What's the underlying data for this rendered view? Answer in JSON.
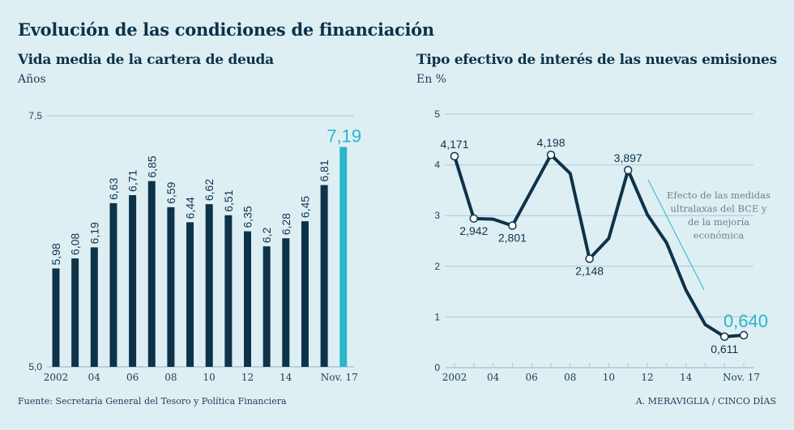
{
  "title": "Evolución de las condiciones de financiación",
  "footer": {
    "source": "Fuente: Secretaría General del Tesoro y Política Financiera",
    "credit": "A. MERAVIGLIA / CINCO DÍAS"
  },
  "colors": {
    "background": "#deeff4",
    "primary": "#0d3349",
    "highlight": "#2bb5c8",
    "gridline": "#a9c9d4",
    "annotation_line": "#2bb5c8"
  },
  "chart_data": [
    {
      "type": "bar",
      "title": "Vida media de la cartera de deuda",
      "ylabel": "Años",
      "xlabel": "",
      "ylim": [
        5.0,
        7.5
      ],
      "yticks": [
        {
          "value": 5.0,
          "label": "5,0"
        },
        {
          "value": 7.5,
          "label": "7,5"
        }
      ],
      "grid": true,
      "categories": [
        "2002",
        "2003",
        "2004",
        "2005",
        "2006",
        "2007",
        "2008",
        "2009",
        "2010",
        "2011",
        "2012",
        "2013",
        "2014",
        "2015",
        "2016",
        "Nov. 17"
      ],
      "xtick_labels": [
        {
          "index": 0,
          "label": "2002"
        },
        {
          "index": 2,
          "label": "04"
        },
        {
          "index": 4,
          "label": "06"
        },
        {
          "index": 6,
          "label": "08"
        },
        {
          "index": 8,
          "label": "10"
        },
        {
          "index": 10,
          "label": "12"
        },
        {
          "index": 12,
          "label": "14"
        },
        {
          "index": 15,
          "label": "Nov. 17"
        }
      ],
      "values": [
        5.98,
        6.08,
        6.19,
        6.63,
        6.71,
        6.85,
        6.59,
        6.44,
        6.62,
        6.51,
        6.35,
        6.2,
        6.28,
        6.45,
        6.81,
        7.19
      ],
      "value_labels": [
        "5,98",
        "6,08",
        "6,19",
        "6,63",
        "6,71",
        "6,85",
        "6,59",
        "6,44",
        "6,62",
        "6,51",
        "6,35",
        "6,2",
        "6,28",
        "6,45",
        "6,81",
        "7,19"
      ],
      "highlight_index": 15
    },
    {
      "type": "line",
      "title": "Tipo efectivo de interés de las nuevas emisiones",
      "ylabel": "En %",
      "xlabel": "",
      "ylim": [
        0,
        5
      ],
      "yticks": [
        {
          "value": 0,
          "label": "0"
        },
        {
          "value": 1,
          "label": "1"
        },
        {
          "value": 2,
          "label": "2"
        },
        {
          "value": 3,
          "label": "3"
        },
        {
          "value": 4,
          "label": "4"
        },
        {
          "value": 5,
          "label": "5"
        }
      ],
      "grid": true,
      "x": [
        "2002",
        "2003",
        "2004",
        "2005",
        "2006",
        "2007",
        "2008",
        "2009",
        "2010",
        "2011",
        "2012",
        "2013",
        "2014",
        "2015",
        "2016",
        "Nov. 17"
      ],
      "xtick_labels": [
        {
          "index": 0,
          "label": "2002"
        },
        {
          "index": 2,
          "label": "04"
        },
        {
          "index": 4,
          "label": "06"
        },
        {
          "index": 6,
          "label": "08"
        },
        {
          "index": 8,
          "label": "10"
        },
        {
          "index": 10,
          "label": "12"
        },
        {
          "index": 12,
          "label": "14"
        },
        {
          "index": 15,
          "label": "Nov. 17"
        }
      ],
      "series": [
        {
          "name": "Tipo efectivo",
          "values": [
            4.171,
            2.942,
            2.93,
            2.801,
            3.5,
            4.198,
            3.83,
            2.148,
            2.55,
            3.897,
            3.02,
            2.46,
            1.53,
            0.85,
            0.611,
            0.64
          ]
        }
      ],
      "point_labels": [
        {
          "index": 0,
          "label": "4,171",
          "position": "above"
        },
        {
          "index": 1,
          "label": "2,942",
          "position": "below"
        },
        {
          "index": 3,
          "label": "2,801",
          "position": "below"
        },
        {
          "index": 5,
          "label": "4,198",
          "position": "above"
        },
        {
          "index": 7,
          "label": "2,148",
          "position": "below"
        },
        {
          "index": 9,
          "label": "3,897",
          "position": "above"
        },
        {
          "index": 14,
          "label": "0,611",
          "position": "below"
        },
        {
          "index": 15,
          "label": "0,640",
          "position": "above",
          "highlight": true
        }
      ],
      "annotation": {
        "lines": [
          "Efecto de las medidas",
          "ultralaxas del BCE y",
          "de la mejoría",
          "económica"
        ]
      }
    }
  ]
}
